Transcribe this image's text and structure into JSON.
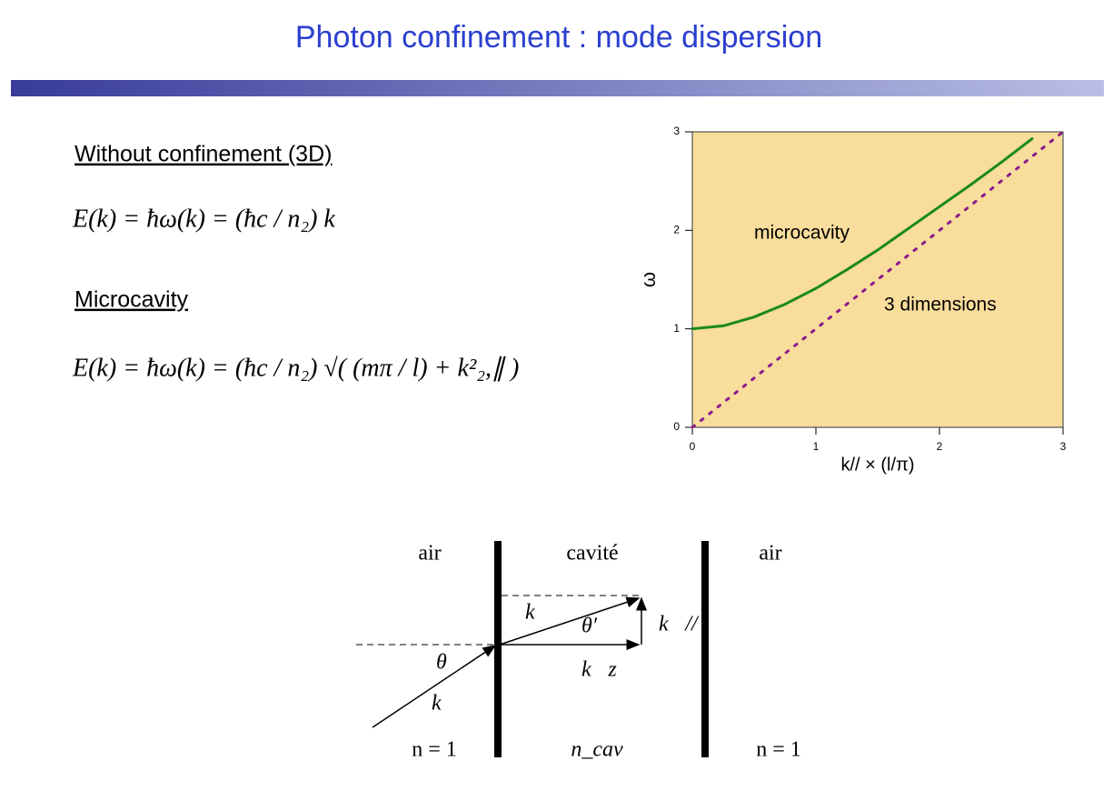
{
  "title": "Photon confinement : mode dispersion",
  "sections": [
    {
      "heading": "Without confinement (3D)",
      "equation": "E(k) = ħω(k) = (ħc / n₂) k"
    },
    {
      "heading": "Microcavity",
      "equation": "E(k) = ħω(k) = (ħc / n₂) √( (mπ / l) + k²₂,∥ )"
    }
  ],
  "chart_data": {
    "type": "line",
    "xlabel": "k// × (l/π)",
    "ylabel": "ω",
    "x": [
      0,
      0.25,
      0.5,
      0.75,
      1,
      1.25,
      1.5,
      1.75,
      2,
      2.25,
      2.5,
      2.75,
      3
    ],
    "series": [
      {
        "name": "microcavity",
        "color": "#1a8a1a",
        "style": "solid",
        "values": [
          1,
          1.03,
          1.12,
          1.25,
          1.41,
          1.6,
          1.8,
          2.02,
          2.24,
          2.46,
          2.69,
          2.93,
          null
        ]
      },
      {
        "name": "3 dimensions",
        "color": "#8b1a8b",
        "style": "dotted",
        "values": [
          0,
          0.25,
          0.5,
          0.75,
          1,
          1.25,
          1.5,
          1.75,
          2,
          2.25,
          2.5,
          2.75,
          3
        ]
      }
    ],
    "xlim": [
      0,
      3
    ],
    "ylim": [
      0,
      3
    ],
    "xticks": [
      0,
      1,
      2,
      3
    ],
    "yticks": [
      0,
      1,
      2,
      3
    ],
    "background": "#f8dd9c"
  },
  "diagram": {
    "regions": [
      "air",
      "cavité",
      "air"
    ],
    "indices": [
      "n = 1",
      "n_cav",
      "n = 1"
    ],
    "labels": {
      "theta": "θ",
      "theta_prime": "θ′",
      "k_in": "k⃗",
      "k_cav": "k⃗",
      "k_z": "k⃗z",
      "k_par": "k⃗//"
    }
  }
}
